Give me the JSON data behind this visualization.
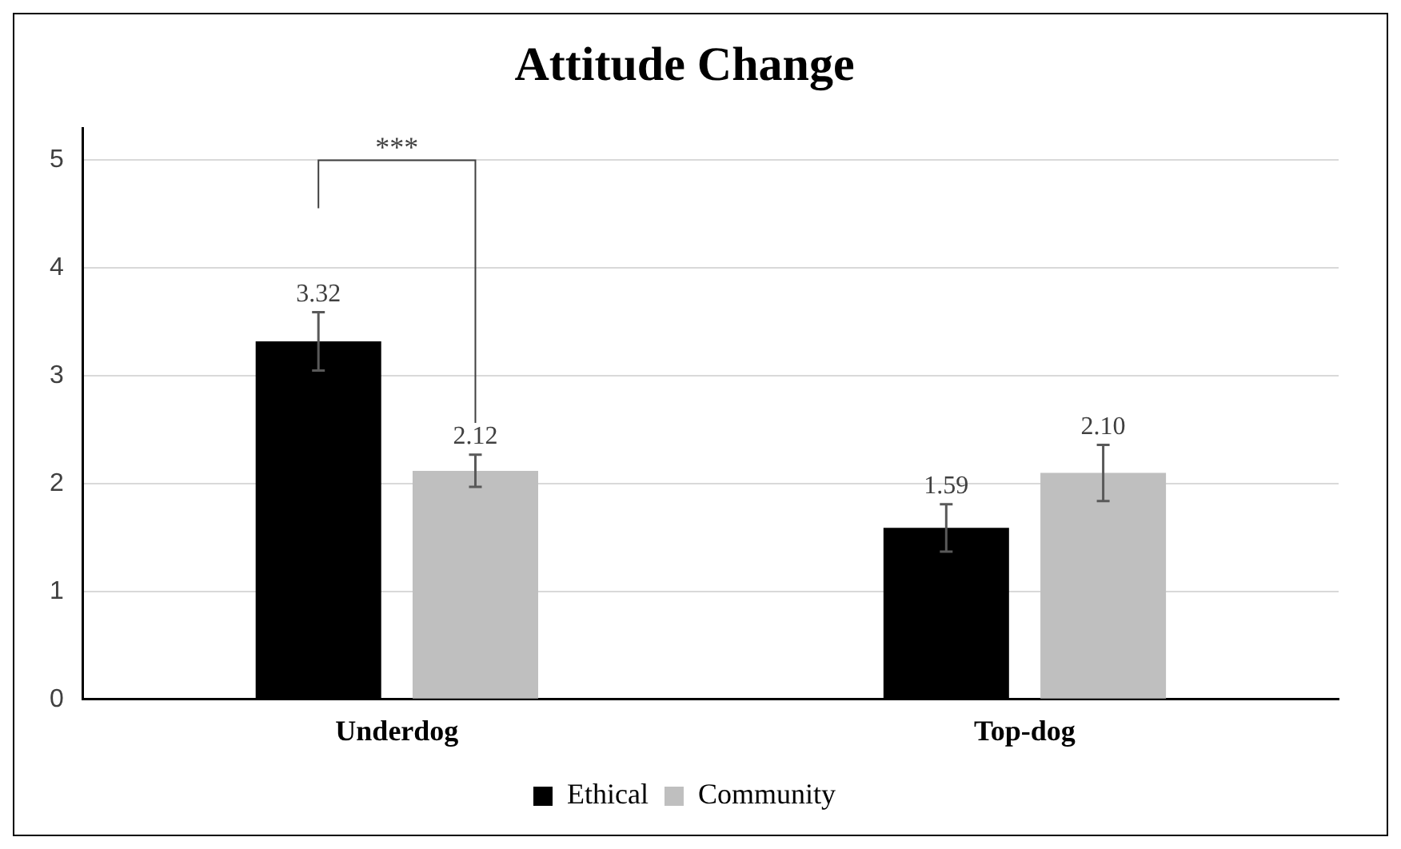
{
  "chart_data": {
    "type": "bar",
    "title": "Attitude Change",
    "categories": [
      "Underdog",
      "Top-dog"
    ],
    "series": [
      {
        "name": "Ethical",
        "color": "#000000",
        "values": [
          3.32,
          1.59
        ],
        "value_labels": [
          "3.32",
          "1.59"
        ],
        "errors": [
          0.27,
          0.22
        ]
      },
      {
        "name": "Community",
        "color": "#bfbfbf",
        "values": [
          2.12,
          2.1
        ],
        "value_labels": [
          "2.12",
          "2.10"
        ],
        "errors": [
          0.15,
          0.26
        ]
      }
    ],
    "ylim": [
      0,
      5.3
    ],
    "yticks": [
      0,
      1,
      2,
      3,
      4,
      5
    ],
    "grid": "y",
    "legend": "bottom",
    "annotations": [
      "***"
    ]
  }
}
